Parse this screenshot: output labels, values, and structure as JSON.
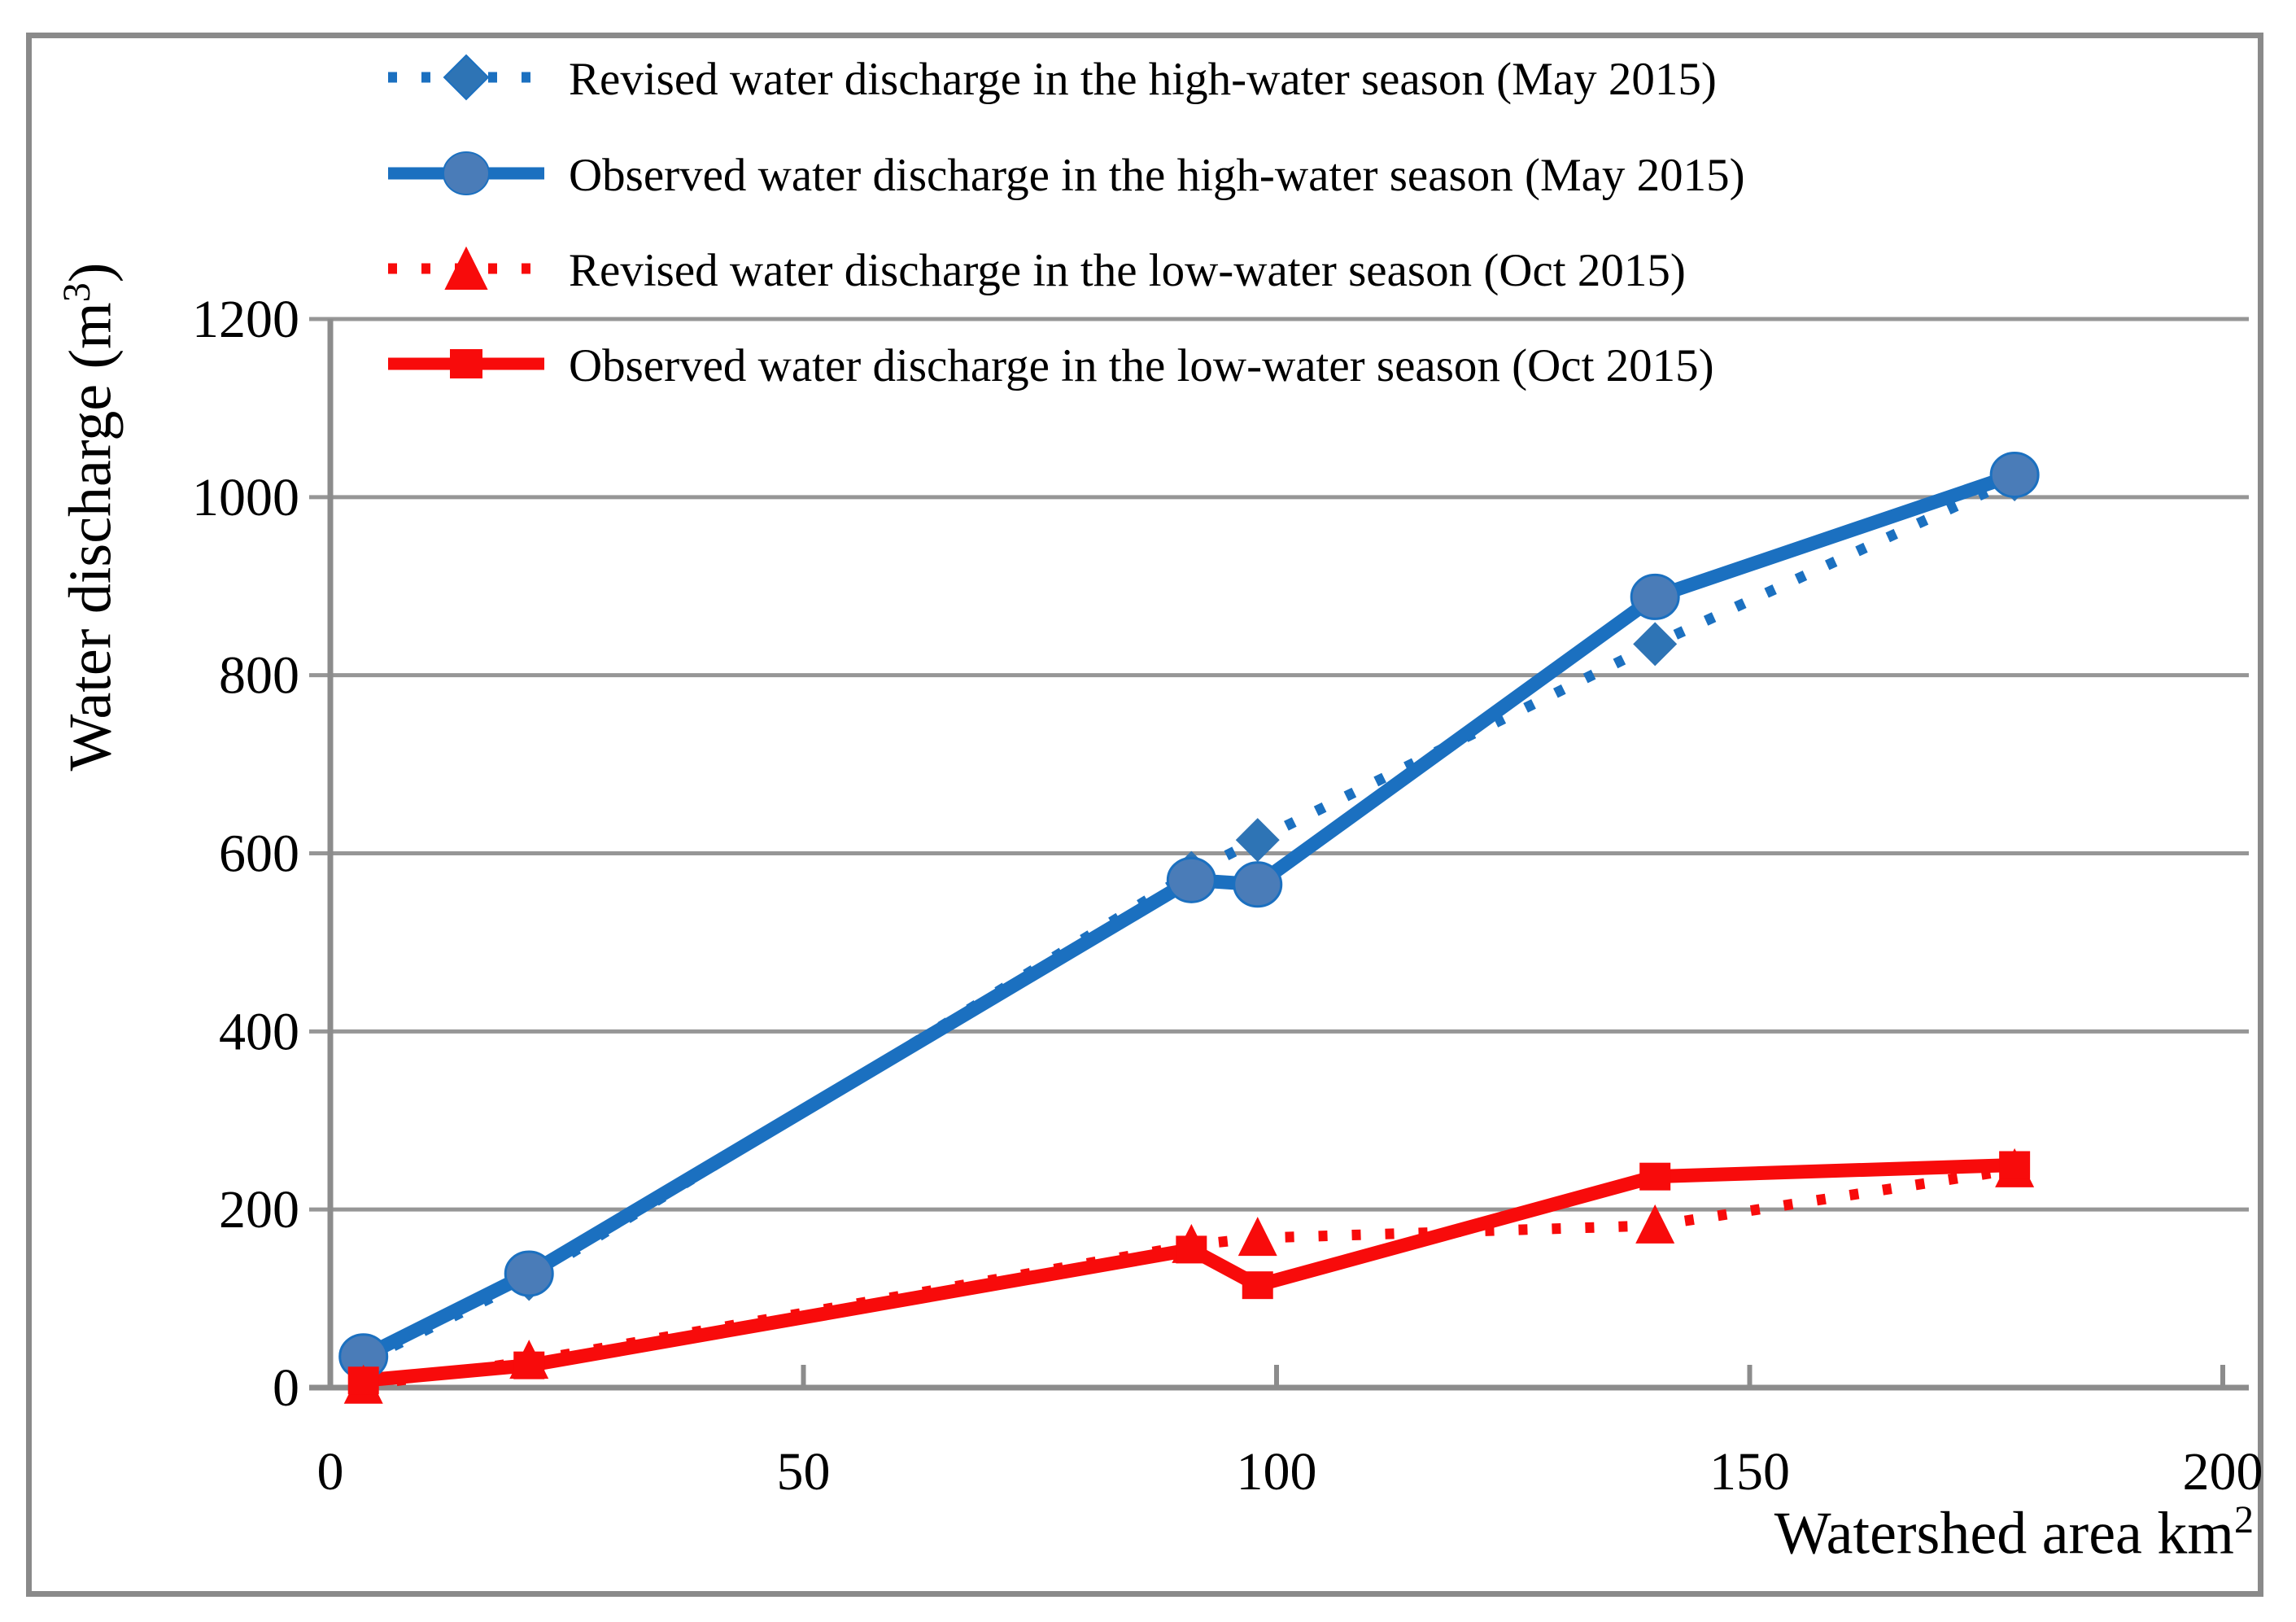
{
  "figure": {
    "y_axis_title": "Water discharge (m",
    "y_axis_title_sup": "3",
    "y_axis_title_close": ")",
    "x_axis_title": "Watershed area km",
    "x_axis_title_sup": "2"
  },
  "legend": {
    "position": "top",
    "items": [
      {
        "label": "Revised water discharge in the high-water season (May 2015)",
        "series": "may_revised",
        "marker": "diamond",
        "line": "dotted"
      },
      {
        "label": "Observed water discharge in the high-water season (May 2015)",
        "series": "may_observed",
        "marker": "circle",
        "line": "solid"
      },
      {
        "label": "Revised water discharge in the low-water season (Oct 2015)",
        "series": "oct_revised",
        "marker": "triangle",
        "line": "dotted"
      },
      {
        "label": "Observed water discharge in the low-water season (Oct 2015)",
        "series": "oct_observed",
        "marker": "square",
        "line": "solid"
      }
    ]
  },
  "chart_data": {
    "type": "line",
    "title": "",
    "xlabel": "Watershed area km2",
    "ylabel": "Water discharge (m3)",
    "xlim": [
      0,
      200
    ],
    "ylim": [
      0,
      1200
    ],
    "x_ticks": [
      0,
      50,
      100,
      150,
      200
    ],
    "y_ticks": [
      0,
      200,
      400,
      600,
      800,
      1000,
      1200
    ],
    "grid": "horizontal",
    "legend_position": "top",
    "x": [
      3.5,
      21,
      91,
      98,
      140,
      178
    ],
    "series": [
      {
        "name": "Revised water discharge in the high-water season (May 2015)",
        "id": "may_revised",
        "color": "#1b70c0",
        "marker_fill": "#2e74b5",
        "line": "dotted",
        "marker": "diamond",
        "values": [
          30,
          122,
          578,
          615,
          835,
          1020
        ]
      },
      {
        "name": "Observed water discharge in the high-water season (May 2015)",
        "id": "may_observed",
        "color": "#1b70c0",
        "marker_fill": "#4a7cb8",
        "line": "solid",
        "marker": "circle",
        "values": [
          35,
          128,
          570,
          565,
          888,
          1025
        ]
      },
      {
        "name": "Revised water discharge in the low-water season (Oct 2015)",
        "id": "oct_revised",
        "color": "#f80b0b",
        "marker_fill": "#f80b0b",
        "line": "dotted",
        "marker": "triangle",
        "values": [
          2,
          30,
          160,
          168,
          182,
          245
        ]
      },
      {
        "name": "Observed water discharge in the low-water season (Oct 2015)",
        "id": "oct_observed",
        "color": "#f80b0b",
        "marker_fill": "#f80b0b",
        "line": "solid",
        "marker": "square",
        "values": [
          8,
          25,
          155,
          115,
          237,
          250
        ]
      }
    ]
  },
  "colors": {
    "blue_line": "#1b70c0",
    "blue_marker": "#4a7cb8",
    "red_line": "#f80b0b",
    "grid_gray": "#969696",
    "axis_gray": "#8c8c8c",
    "border_gray": "#8a8a8a",
    "text_black": "#000000"
  }
}
